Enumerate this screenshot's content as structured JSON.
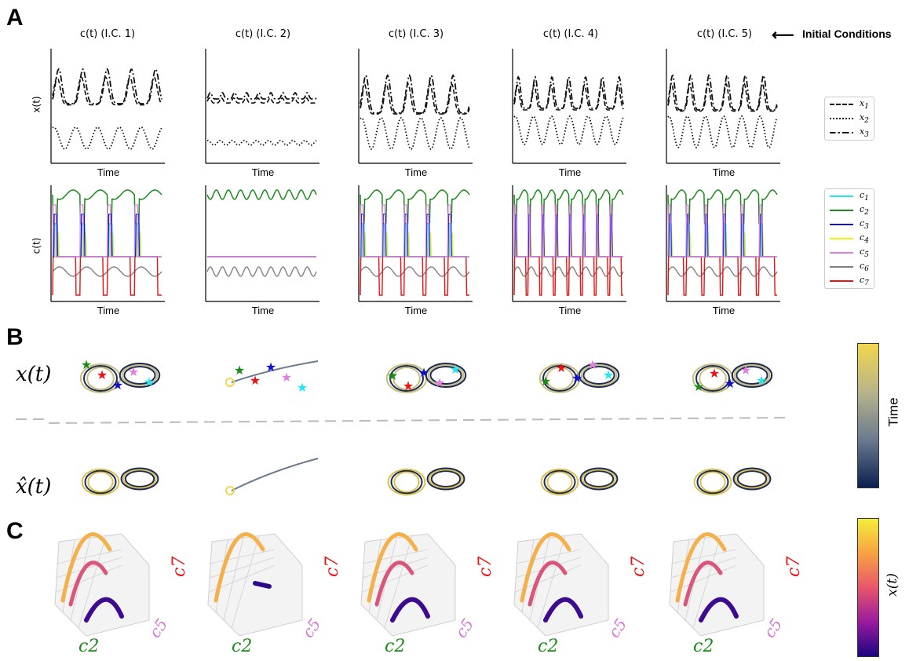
{
  "panels": {
    "a": "A",
    "b": "B",
    "c": "C"
  },
  "initial_conditions_label": "Initial Conditions",
  "arrow_glyph": "⟵",
  "columns": [
    "c(t) (I.C. 1)",
    "c(t) (I.C. 2)",
    "c(t) (I.C. 3)",
    "c(t) (I.C. 4)",
    "c(t) (I.C. 5)"
  ],
  "time_label": "Time",
  "ylabel_x": "x(t)",
  "ylabel_c": "c(t)",
  "legend_x": [
    {
      "name": "x1",
      "sub": "1",
      "dash": "dashed"
    },
    {
      "name": "x2",
      "sub": "2",
      "dash": "dotted"
    },
    {
      "name": "x3",
      "sub": "3",
      "dash": "dashdot"
    }
  ],
  "legend_c": [
    {
      "name": "c1",
      "sub": "1",
      "color": "#22e5f5"
    },
    {
      "name": "c2",
      "sub": "2",
      "color": "#1a8a1a"
    },
    {
      "name": "c3",
      "sub": "3",
      "color": "#1010cc"
    },
    {
      "name": "c4",
      "sub": "4",
      "color": "#f2f20a"
    },
    {
      "name": "c5",
      "sub": "5",
      "color": "#e27ee2"
    },
    {
      "name": "c6",
      "sub": "6",
      "color": "#808080"
    },
    {
      "name": "c7",
      "sub": "7",
      "color": "#ee1111"
    }
  ],
  "row_labels_b": {
    "x": "x(t)",
    "xhat": "x̂(t)"
  },
  "colorbar_b": {
    "label": "Time",
    "colors": [
      "#0a1f4f",
      "#6b7a8f",
      "#b8b48a",
      "#f2d64b"
    ]
  },
  "colorbar_c": {
    "label": "x(t)",
    "colors": [
      "#1a0580",
      "#9a1aa0",
      "#e8566a",
      "#f9a243",
      "#f4ed38"
    ]
  },
  "axis3d_labels": {
    "c2": "c2",
    "c5": "c5",
    "c7": "c7"
  },
  "chart_data": {
    "type": "line",
    "title": "",
    "xlabel": "Time",
    "series_x": [
      "x1",
      "x2",
      "x3"
    ],
    "series_c": [
      "c1",
      "c2",
      "c3",
      "c4",
      "c5",
      "c6",
      "c7"
    ],
    "initial_conditions": [
      "I.C. 1",
      "I.C. 2",
      "I.C. 3",
      "I.C. 4",
      "I.C. 5"
    ]
  }
}
